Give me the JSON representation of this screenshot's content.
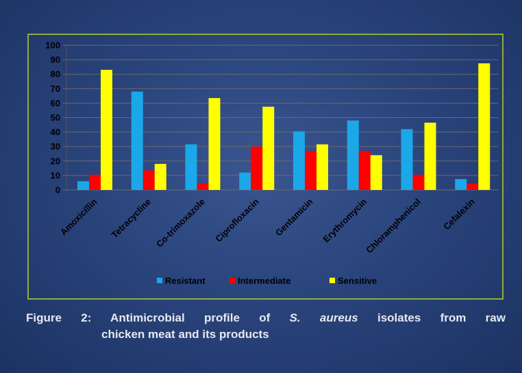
{
  "chart_data": {
    "type": "bar",
    "categories": [
      "Amoxicillin",
      "Tetracycline",
      "Co-trimoxazole",
      "Ciprofloxacin",
      "Gentamicin",
      "Erythromycin",
      "Chloramphenicol",
      "Cefalexin"
    ],
    "series": [
      {
        "name": "Resistant",
        "color": "#1ba8e8",
        "values": [
          6,
          68,
          31.5,
          12,
          40.5,
          48,
          42,
          7.5
        ]
      },
      {
        "name": "Intermediate",
        "color": "#ff0000",
        "values": [
          10.5,
          13.5,
          4.5,
          30,
          27,
          27,
          10.5,
          4.5
        ]
      },
      {
        "name": "Sensitive",
        "color": "#ffff00",
        "values": [
          83,
          18,
          63.5,
          57.5,
          31.5,
          24,
          46.5,
          87.5
        ]
      }
    ],
    "yticks": [
      0,
      10,
      20,
      30,
      40,
      50,
      60,
      70,
      80,
      90,
      100
    ],
    "ylim": [
      0,
      100
    ],
    "grid": true,
    "legend_position": "bottom",
    "title": "",
    "xlabel": "",
    "ylabel": ""
  },
  "caption": {
    "line1_prefix": "Figure 2: Antimicrobial profile of ",
    "line1_italic": "S. aureus",
    "line1_suffix": " isolates from raw",
    "line2": "chicken meat and its products"
  }
}
